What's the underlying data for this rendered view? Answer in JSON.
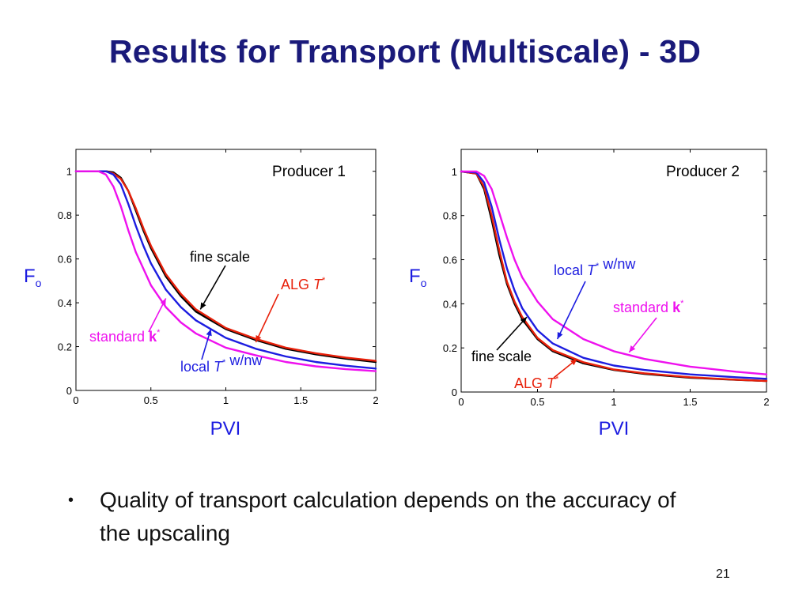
{
  "slide": {
    "title": "Results for Transport (Multiscale) - 3D",
    "bullet": "Quality of transport calculation depends on the accuracy of the upscaling",
    "page_number": "21"
  },
  "colors": {
    "title": "#1a1a7a",
    "fine_scale": "#000000",
    "alg": "#e8200a",
    "local": "#1c1ce0",
    "standard": "#ee11ee",
    "axis_label": "#1c1ce0"
  },
  "chart_data": [
    {
      "type": "line",
      "title": "Producer 1",
      "xlabel": "PVI",
      "ylabel_main": "F",
      "ylabel_sub": "o",
      "xlim": [
        0,
        2
      ],
      "ylim": [
        0,
        1.1
      ],
      "xticks": [
        0,
        0.5,
        1,
        1.5,
        2
      ],
      "xtick_labels": [
        "0",
        "0.5",
        "1",
        "1.5",
        "2"
      ],
      "yticks": [
        0,
        0.2,
        0.4,
        0.6,
        0.8,
        1
      ],
      "ytick_labels": [
        "0",
        "0.2",
        "0.4",
        "0.6",
        "0.8",
        "1"
      ],
      "grid": false,
      "series": [
        {
          "key": "fine",
          "color": "#000000",
          "x": [
            0,
            0.2,
            0.25,
            0.3,
            0.35,
            0.4,
            0.45,
            0.5,
            0.6,
            0.7,
            0.8,
            1.0,
            1.2,
            1.4,
            1.6,
            1.8,
            2.0
          ],
          "y": [
            1,
            1,
            0.995,
            0.97,
            0.91,
            0.82,
            0.73,
            0.65,
            0.52,
            0.43,
            0.36,
            0.28,
            0.23,
            0.19,
            0.165,
            0.145,
            0.13
          ]
        },
        {
          "key": "alg",
          "color": "#e8200a",
          "x": [
            0,
            0.2,
            0.25,
            0.3,
            0.35,
            0.4,
            0.45,
            0.5,
            0.6,
            0.7,
            0.8,
            1.0,
            1.2,
            1.4,
            1.6,
            1.8,
            2.0
          ],
          "y": [
            1,
            1,
            0.99,
            0.965,
            0.91,
            0.83,
            0.74,
            0.66,
            0.53,
            0.44,
            0.37,
            0.285,
            0.235,
            0.195,
            0.17,
            0.15,
            0.135
          ]
        },
        {
          "key": "local",
          "color": "#1c1ce0",
          "x": [
            0,
            0.2,
            0.25,
            0.3,
            0.35,
            0.4,
            0.45,
            0.5,
            0.6,
            0.7,
            0.8,
            1.0,
            1.2,
            1.4,
            1.6,
            1.8,
            2.0
          ],
          "y": [
            1,
            1,
            0.985,
            0.94,
            0.85,
            0.75,
            0.66,
            0.58,
            0.46,
            0.38,
            0.32,
            0.24,
            0.19,
            0.155,
            0.13,
            0.113,
            0.1
          ]
        },
        {
          "key": "standard",
          "color": "#ee11ee",
          "x": [
            0,
            0.15,
            0.2,
            0.25,
            0.3,
            0.35,
            0.4,
            0.5,
            0.6,
            0.7,
            0.8,
            1.0,
            1.2,
            1.4,
            1.6,
            1.8,
            2.0
          ],
          "y": [
            1,
            1,
            0.985,
            0.93,
            0.84,
            0.73,
            0.63,
            0.48,
            0.38,
            0.31,
            0.26,
            0.195,
            0.16,
            0.13,
            0.11,
            0.097,
            0.088
          ]
        }
      ],
      "annotations": [
        {
          "key": "fine",
          "parts": [
            {
              "t": "fine scale",
              "s": "n"
            }
          ],
          "arrow": [
            0.83,
            0.37
          ]
        },
        {
          "key": "alg",
          "parts": [
            {
              "t": "ALG ",
              "s": "n"
            },
            {
              "t": "T",
              "s": "i"
            },
            {
              "t": "*",
              "s": "sup"
            }
          ],
          "arrow": [
            1.2,
            0.22
          ]
        },
        {
          "key": "standard",
          "parts": [
            {
              "t": "standard ",
              "s": "n"
            },
            {
              "t": "k",
              "s": "b"
            },
            {
              "t": "*",
              "s": "sup"
            }
          ],
          "arrow": [
            0.6,
            0.42
          ]
        },
        {
          "key": "local",
          "parts": [
            {
              "t": "local ",
              "s": "n"
            },
            {
              "t": "T",
              "s": "i"
            },
            {
              "t": "*",
              "s": "sup"
            },
            {
              "t": " w/nw",
              "s": "n"
            }
          ],
          "arrow": [
            0.9,
            0.28
          ]
        }
      ]
    },
    {
      "type": "line",
      "title": "Producer 2",
      "xlabel": "PVI",
      "ylabel_main": "F",
      "ylabel_sub": "o",
      "xlim": [
        0,
        2
      ],
      "ylim": [
        0,
        1.1
      ],
      "xticks": [
        0,
        0.5,
        1,
        1.5,
        2
      ],
      "xtick_labels": [
        "0",
        "0.5",
        "1",
        "1.5",
        "2"
      ],
      "yticks": [
        0,
        0.2,
        0.4,
        0.6,
        0.8,
        1
      ],
      "ytick_labels": [
        "0",
        "0.2",
        "0.4",
        "0.6",
        "0.8",
        "1"
      ],
      "grid": false,
      "series": [
        {
          "key": "fine",
          "color": "#000000",
          "x": [
            0,
            0.1,
            0.15,
            0.2,
            0.25,
            0.3,
            0.35,
            0.4,
            0.5,
            0.6,
            0.8,
            1.0,
            1.2,
            1.5,
            1.8,
            2.0
          ],
          "y": [
            1,
            0.99,
            0.92,
            0.78,
            0.62,
            0.49,
            0.4,
            0.33,
            0.24,
            0.185,
            0.13,
            0.1,
            0.082,
            0.065,
            0.055,
            0.05
          ]
        },
        {
          "key": "alg",
          "color": "#e8200a",
          "x": [
            0,
            0.1,
            0.15,
            0.2,
            0.25,
            0.3,
            0.35,
            0.4,
            0.5,
            0.6,
            0.8,
            1.0,
            1.2,
            1.5,
            1.8,
            2.0
          ],
          "y": [
            1,
            0.99,
            0.93,
            0.8,
            0.64,
            0.5,
            0.41,
            0.34,
            0.245,
            0.19,
            0.135,
            0.102,
            0.085,
            0.067,
            0.056,
            0.05
          ]
        },
        {
          "key": "local",
          "color": "#1c1ce0",
          "x": [
            0,
            0.1,
            0.15,
            0.2,
            0.25,
            0.3,
            0.35,
            0.4,
            0.5,
            0.6,
            0.8,
            1.0,
            1.2,
            1.5,
            1.8,
            2.0
          ],
          "y": [
            1,
            0.995,
            0.95,
            0.84,
            0.69,
            0.56,
            0.46,
            0.38,
            0.28,
            0.22,
            0.155,
            0.12,
            0.1,
            0.08,
            0.067,
            0.06
          ]
        },
        {
          "key": "standard",
          "color": "#ee11ee",
          "x": [
            0,
            0.1,
            0.15,
            0.2,
            0.25,
            0.3,
            0.35,
            0.4,
            0.5,
            0.6,
            0.8,
            1.0,
            1.2,
            1.5,
            1.8,
            2.0
          ],
          "y": [
            1,
            1,
            0.98,
            0.92,
            0.81,
            0.7,
            0.6,
            0.52,
            0.41,
            0.33,
            0.24,
            0.185,
            0.15,
            0.115,
            0.092,
            0.08
          ]
        }
      ],
      "annotations": [
        {
          "key": "local",
          "parts": [
            {
              "t": "local ",
              "s": "n"
            },
            {
              "t": "T",
              "s": "i"
            },
            {
              "t": "*",
              "s": "sup"
            },
            {
              "t": " w/nw",
              "s": "n"
            }
          ],
          "arrow": [
            0.63,
            0.24
          ]
        },
        {
          "key": "standard",
          "parts": [
            {
              "t": "standard ",
              "s": "n"
            },
            {
              "t": "k",
              "s": "b"
            },
            {
              "t": "*",
              "s": "sup"
            }
          ],
          "arrow": [
            1.1,
            0.18
          ]
        },
        {
          "key": "fine",
          "parts": [
            {
              "t": "fine scale",
              "s": "n"
            }
          ],
          "arrow": [
            0.43,
            0.34
          ]
        },
        {
          "key": "alg",
          "parts": [
            {
              "t": "ALG ",
              "s": "n"
            },
            {
              "t": "T",
              "s": "i"
            },
            {
              "t": "*",
              "s": "sup"
            }
          ],
          "arrow": [
            0.76,
            0.15
          ]
        }
      ]
    }
  ]
}
